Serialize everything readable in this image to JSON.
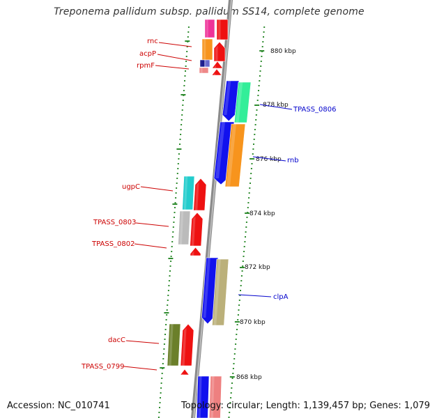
{
  "title": "Treponema pallidum subsp. pallidum SS14, complete genome",
  "footer": {
    "accession_text": "Accession: NC_010741",
    "summary_text": "Topology: circular; Length: 1,139,457 bp; Genes: 1,079"
  },
  "ruler": {
    "unit": "kbp",
    "major_ticks": [
      "880 kbp",
      "878 kbp",
      "876 kbp",
      "874 kbp",
      "872 kbp",
      "870 kbp",
      "868 kbp"
    ]
  },
  "colors": {
    "background": "#ffffff",
    "backbone": "#888888",
    "ruler_dots": "#2e8b2e",
    "left_label": "#cc0000",
    "right_label": "#0000cc"
  },
  "left_labels": [
    {
      "name": "rnc",
      "color": "#cc0000"
    },
    {
      "name": "acpP",
      "color": "#cc0000"
    },
    {
      "name": "rpmF",
      "color": "#cc0000"
    },
    {
      "name": "ugpC",
      "color": "#cc0000"
    },
    {
      "name": "TPASS_0803",
      "color": "#cc0000"
    },
    {
      "name": "TPASS_0802",
      "color": "#cc0000"
    },
    {
      "name": "dacC",
      "color": "#cc0000"
    },
    {
      "name": "TPASS_0799",
      "color": "#cc0000"
    }
  ],
  "right_labels": [
    {
      "name": "TPASS_0806",
      "color": "#0000cc"
    },
    {
      "name": "rnb",
      "color": "#0000cc"
    },
    {
      "name": "clpA",
      "color": "#0000cc"
    }
  ],
  "feature_colors": {
    "hot-pink": "#ee3399",
    "red": "#ee1111",
    "orange": "#f7941d",
    "navy": "#1a1a8c",
    "slate-blue": "#6666cc",
    "pink": "#ee8888",
    "blue": "#1111ee",
    "mint": "#33ee99",
    "cyan": "#22cccc",
    "gray": "#bbbbbb",
    "khaki": "#bbb07a",
    "olive": "#6b7f2a",
    "salmon": "#ee8080"
  }
}
